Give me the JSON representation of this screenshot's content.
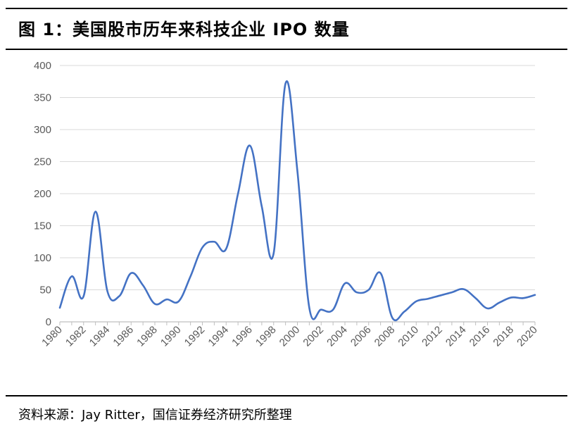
{
  "header": {
    "title": "图 1：美国股市历年来科技企业 IPO 数量"
  },
  "footer": {
    "source": "资料来源：Jay Ritter，国信证券经济研究所整理"
  },
  "colors": {
    "line": "#4472C4",
    "grid": "#D9D9D9",
    "axis": "#BFBFBF",
    "tick_text": "#595959"
  },
  "chart_data": {
    "type": "line",
    "title": "",
    "xlabel": "",
    "ylabel": "",
    "ylim": [
      0,
      400
    ],
    "yticks": [
      0,
      50,
      100,
      150,
      200,
      250,
      300,
      350,
      400
    ],
    "xticks": [
      "1980",
      "1982",
      "1984",
      "1986",
      "1988",
      "1990",
      "1992",
      "1994",
      "1996",
      "1998",
      "2000",
      "2002",
      "2004",
      "2006",
      "2008",
      "2010",
      "2012",
      "2014",
      "2016",
      "2018",
      "2020"
    ],
    "grid": true,
    "legend": "none",
    "series": [
      {
        "x": [
          1980,
          1981,
          1982,
          1983,
          1984,
          1985,
          1986,
          1987,
          1988,
          1989,
          1990,
          1991,
          1992,
          1993,
          1994,
          1995,
          1996,
          1997,
          1998,
          1999,
          2000,
          2001,
          2002,
          2003,
          2004,
          2005,
          2006,
          2007,
          2008,
          2009,
          2010,
          2011,
          2012,
          2013,
          2014,
          2015,
          2016,
          2017,
          2018,
          2019,
          2020
        ],
        "y": [
          22,
          71,
          40,
          172,
          48,
          40,
          76,
          57,
          28,
          35,
          32,
          71,
          116,
          125,
          114,
          200,
          275,
          180,
          107,
          372,
          235,
          22,
          19,
          19,
          60,
          46,
          50,
          76,
          6,
          16,
          32,
          36,
          41,
          46,
          51,
          37,
          21,
          30,
          38,
          37,
          42
        ]
      }
    ]
  }
}
